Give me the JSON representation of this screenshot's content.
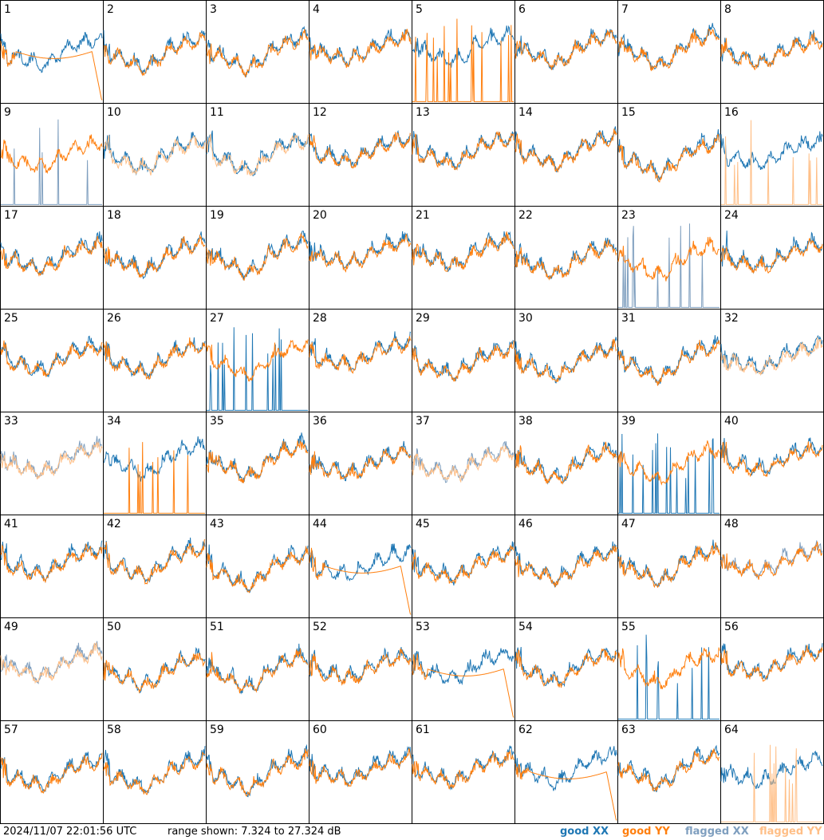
{
  "chart_data": {
    "type": "line",
    "title": "",
    "grid": {
      "rows": 8,
      "cols": 8
    },
    "panel_labels": [
      "1",
      "2",
      "3",
      "4",
      "5",
      "6",
      "7",
      "8",
      "9",
      "10",
      "11",
      "12",
      "13",
      "14",
      "15",
      "16",
      "17",
      "18",
      "19",
      "20",
      "21",
      "22",
      "23",
      "24",
      "25",
      "26",
      "27",
      "28",
      "29",
      "30",
      "31",
      "32",
      "33",
      "34",
      "35",
      "36",
      "37",
      "38",
      "39",
      "40",
      "41",
      "42",
      "43",
      "44",
      "45",
      "46",
      "47",
      "48",
      "49",
      "50",
      "51",
      "52",
      "53",
      "54",
      "55",
      "56",
      "57",
      "58",
      "59",
      "60",
      "61",
      "62",
      "63",
      "64"
    ],
    "ylim_db": [
      7.324,
      27.324
    ],
    "series_styles": [
      {
        "name": "good XX",
        "color": "#1f77b4"
      },
      {
        "name": "good YY",
        "color": "#ff7f0e"
      },
      {
        "name": "flagged XX",
        "color": "#7f9fbf"
      },
      {
        "name": "flagged YY",
        "color": "#ffbf87"
      }
    ],
    "panel_status": {
      "xx_flagged": [
        9,
        23,
        48
      ],
      "yy_flagged": [
        10,
        11,
        16,
        32,
        64
      ],
      "both_flagged": [
        33,
        37,
        49
      ],
      "xx_spiky": [
        27,
        39,
        55
      ],
      "yy_spiky": [
        5,
        34
      ],
      "xx_dropout": [],
      "yy_dropout": [
        1,
        44,
        53,
        62
      ]
    }
  },
  "footer": {
    "timestamp": "2024/11/07 22:01:56 UTC",
    "range": "range shown: 7.324 to 27.324 dB",
    "legend": [
      {
        "label": "good XX",
        "color": "#1f77b4"
      },
      {
        "label": "good YY",
        "color": "#ff7f0e"
      },
      {
        "label": "flagged XX",
        "color": "#7f9fbf"
      },
      {
        "label": "flagged YY",
        "color": "#ffbf87"
      }
    ]
  }
}
